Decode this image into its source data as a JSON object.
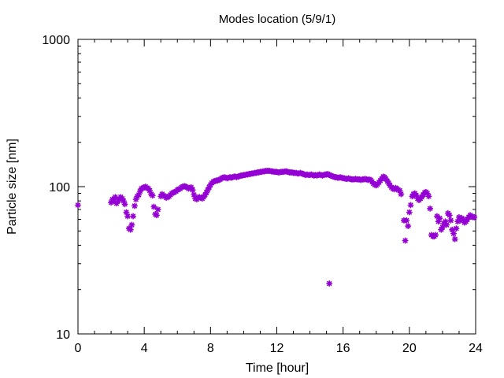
{
  "chart_data": {
    "type": "scatter",
    "title": "Modes location (5/9/1)",
    "xlabel": "Time [hour]",
    "ylabel": "Particle size [nm]",
    "xlim": [
      0,
      24
    ],
    "ylim": [
      10,
      1000
    ],
    "yscale": "log",
    "xticks": [
      0,
      4,
      8,
      12,
      16,
      20,
      24
    ],
    "xtick_labels": [
      "0",
      "4",
      "8",
      "12",
      "16",
      "20",
      "24"
    ],
    "yticks": [
      10,
      100,
      1000
    ],
    "ytick_labels": [
      "10",
      "100",
      "1000"
    ],
    "grid": false,
    "legend": "none",
    "marker": "asterisk",
    "color": "#9400d3",
    "series": [
      {
        "points": [
          [
            0.0,
            75
          ],
          [
            2.0,
            78
          ],
          [
            2.08,
            82
          ],
          [
            2.17,
            80
          ],
          [
            2.25,
            85
          ],
          [
            2.33,
            77
          ],
          [
            2.42,
            80
          ],
          [
            2.5,
            82
          ],
          [
            2.58,
            85
          ],
          [
            2.67,
            83
          ],
          [
            2.75,
            80
          ],
          [
            2.83,
            76
          ],
          [
            2.92,
            67
          ],
          [
            3.0,
            63
          ],
          [
            3.08,
            52
          ],
          [
            3.17,
            51
          ],
          [
            3.25,
            55
          ],
          [
            3.33,
            63
          ],
          [
            3.42,
            74
          ],
          [
            3.5,
            82
          ],
          [
            3.58,
            86
          ],
          [
            3.67,
            88
          ],
          [
            3.75,
            93
          ],
          [
            3.83,
            97
          ],
          [
            3.92,
            98
          ],
          [
            4.0,
            99
          ],
          [
            4.08,
            100
          ],
          [
            4.17,
            98
          ],
          [
            4.25,
            97
          ],
          [
            4.33,
            94
          ],
          [
            4.42,
            89
          ],
          [
            4.5,
            87
          ],
          [
            4.58,
            73
          ],
          [
            4.67,
            65
          ],
          [
            4.75,
            64
          ],
          [
            4.83,
            70
          ],
          [
            5.0,
            86
          ],
          [
            5.08,
            89
          ],
          [
            5.17,
            87
          ],
          [
            5.25,
            86
          ],
          [
            5.33,
            84
          ],
          [
            5.42,
            85
          ],
          [
            5.5,
            86
          ],
          [
            5.58,
            88
          ],
          [
            5.67,
            90
          ],
          [
            5.75,
            91
          ],
          [
            5.83,
            92
          ],
          [
            5.92,
            93
          ],
          [
            6.0,
            95
          ],
          [
            6.08,
            96
          ],
          [
            6.17,
            97
          ],
          [
            6.25,
            99
          ],
          [
            6.33,
            100
          ],
          [
            6.42,
            101
          ],
          [
            6.5,
            100
          ],
          [
            6.58,
            99
          ],
          [
            6.67,
            97
          ],
          [
            6.75,
            98
          ],
          [
            6.83,
            99
          ],
          [
            6.92,
            95
          ],
          [
            7.0,
            88
          ],
          [
            7.08,
            83
          ],
          [
            7.17,
            82
          ],
          [
            7.25,
            84
          ],
          [
            7.33,
            85
          ],
          [
            7.42,
            84
          ],
          [
            7.5,
            83
          ],
          [
            7.58,
            85
          ],
          [
            7.67,
            88
          ],
          [
            7.75,
            91
          ],
          [
            7.83,
            95
          ],
          [
            7.92,
            99
          ],
          [
            8.0,
            103
          ],
          [
            8.08,
            106
          ],
          [
            8.17,
            108
          ],
          [
            8.25,
            109
          ],
          [
            8.33,
            110
          ],
          [
            8.42,
            110
          ],
          [
            8.5,
            111
          ],
          [
            8.58,
            112
          ],
          [
            8.67,
            114
          ],
          [
            8.75,
            115
          ],
          [
            8.83,
            116
          ],
          [
            8.92,
            115
          ],
          [
            9.0,
            114
          ],
          [
            9.08,
            115
          ],
          [
            9.17,
            116
          ],
          [
            9.25,
            115
          ],
          [
            9.33,
            116
          ],
          [
            9.42,
            117
          ],
          [
            9.5,
            117
          ],
          [
            9.58,
            116
          ],
          [
            9.67,
            117
          ],
          [
            9.75,
            118
          ],
          [
            9.83,
            119
          ],
          [
            9.92,
            119
          ],
          [
            10.0,
            120
          ],
          [
            10.08,
            120
          ],
          [
            10.17,
            121
          ],
          [
            10.25,
            121
          ],
          [
            10.33,
            122
          ],
          [
            10.42,
            122
          ],
          [
            10.5,
            123
          ],
          [
            10.58,
            123
          ],
          [
            10.67,
            124
          ],
          [
            10.75,
            124
          ],
          [
            10.83,
            125
          ],
          [
            10.92,
            125
          ],
          [
            11.0,
            126
          ],
          [
            11.08,
            126
          ],
          [
            11.17,
            127
          ],
          [
            11.25,
            127
          ],
          [
            11.33,
            128
          ],
          [
            11.42,
            128
          ],
          [
            11.5,
            128
          ],
          [
            11.58,
            128
          ],
          [
            11.67,
            127
          ],
          [
            11.75,
            127
          ],
          [
            11.83,
            126
          ],
          [
            11.92,
            126
          ],
          [
            12.0,
            126
          ],
          [
            12.08,
            125
          ],
          [
            12.17,
            125
          ],
          [
            12.25,
            126
          ],
          [
            12.33,
            126
          ],
          [
            12.42,
            126
          ],
          [
            12.5,
            127
          ],
          [
            12.58,
            127
          ],
          [
            12.67,
            126
          ],
          [
            12.75,
            125
          ],
          [
            12.83,
            125
          ],
          [
            12.92,
            125
          ],
          [
            13.0,
            124
          ],
          [
            13.08,
            124
          ],
          [
            13.17,
            124
          ],
          [
            13.25,
            123
          ],
          [
            13.33,
            123
          ],
          [
            13.42,
            124
          ],
          [
            13.5,
            123
          ],
          [
            13.58,
            122
          ],
          [
            13.67,
            121
          ],
          [
            13.75,
            120
          ],
          [
            13.83,
            121
          ],
          [
            13.92,
            120
          ],
          [
            14.0,
            120
          ],
          [
            14.08,
            121
          ],
          [
            14.17,
            120
          ],
          [
            14.25,
            119
          ],
          [
            14.33,
            120
          ],
          [
            14.42,
            119
          ],
          [
            14.5,
            120
          ],
          [
            14.58,
            121
          ],
          [
            14.67,
            120
          ],
          [
            14.75,
            119
          ],
          [
            14.83,
            120
          ],
          [
            14.92,
            121
          ],
          [
            15.0,
            121
          ],
          [
            15.08,
            122
          ],
          [
            15.17,
            120
          ],
          [
            15.25,
            119
          ],
          [
            15.33,
            118
          ],
          [
            15.42,
            117
          ],
          [
            15.5,
            116
          ],
          [
            15.58,
            116
          ],
          [
            15.67,
            115
          ],
          [
            15.75,
            115
          ],
          [
            15.83,
            116
          ],
          [
            15.92,
            115
          ],
          [
            16.0,
            114
          ],
          [
            16.08,
            114
          ],
          [
            16.17,
            113
          ],
          [
            16.25,
            113
          ],
          [
            16.33,
            114
          ],
          [
            16.42,
            113
          ],
          [
            16.5,
            112
          ],
          [
            16.58,
            112
          ],
          [
            16.67,
            112
          ],
          [
            16.75,
            113
          ],
          [
            16.83,
            112
          ],
          [
            16.92,
            112
          ],
          [
            17.0,
            112
          ],
          [
            17.08,
            111
          ],
          [
            17.17,
            112
          ],
          [
            17.25,
            112
          ],
          [
            17.33,
            113
          ],
          [
            17.42,
            112
          ],
          [
            17.5,
            111
          ],
          [
            17.58,
            112
          ],
          [
            17.67,
            111
          ],
          [
            17.75,
            108
          ],
          [
            17.83,
            105
          ],
          [
            17.92,
            103
          ],
          [
            18.0,
            102
          ],
          [
            18.08,
            104
          ],
          [
            18.17,
            107
          ],
          [
            18.25,
            110
          ],
          [
            18.33,
            113
          ],
          [
            18.42,
            117
          ],
          [
            18.5,
            116
          ],
          [
            18.58,
            113
          ],
          [
            18.67,
            109
          ],
          [
            18.75,
            106
          ],
          [
            18.83,
            102
          ],
          [
            18.92,
            99
          ],
          [
            19.0,
            97
          ],
          [
            19.08,
            96
          ],
          [
            19.17,
            98
          ],
          [
            19.25,
            97
          ],
          [
            19.33,
            95
          ],
          [
            19.42,
            94
          ],
          [
            19.5,
            89
          ],
          [
            15.17,
            22
          ],
          [
            19.67,
            59
          ],
          [
            19.75,
            43
          ],
          [
            19.83,
            59
          ],
          [
            19.92,
            54
          ],
          [
            20.0,
            67
          ],
          [
            20.08,
            75
          ],
          [
            20.17,
            86
          ],
          [
            20.25,
            89
          ],
          [
            20.33,
            90
          ],
          [
            20.42,
            87
          ],
          [
            20.5,
            83
          ],
          [
            20.58,
            81
          ],
          [
            20.67,
            83
          ],
          [
            20.75,
            85
          ],
          [
            20.83,
            88
          ],
          [
            20.92,
            91
          ],
          [
            21.0,
            92
          ],
          [
            21.08,
            90
          ],
          [
            21.17,
            86
          ],
          [
            21.25,
            71
          ],
          [
            21.33,
            47
          ],
          [
            21.42,
            46
          ],
          [
            21.5,
            46
          ],
          [
            21.58,
            47
          ],
          [
            21.67,
            63
          ],
          [
            21.75,
            58
          ],
          [
            21.83,
            61
          ],
          [
            21.92,
            51
          ],
          [
            22.0,
            53
          ],
          [
            22.08,
            56
          ],
          [
            22.17,
            58
          ],
          [
            22.25,
            55
          ],
          [
            22.33,
            66
          ],
          [
            22.42,
            64
          ],
          [
            22.5,
            59
          ],
          [
            22.58,
            51
          ],
          [
            22.67,
            48
          ],
          [
            22.75,
            44
          ],
          [
            22.83,
            52
          ],
          [
            22.92,
            58
          ],
          [
            23.0,
            62
          ],
          [
            23.08,
            59
          ],
          [
            23.17,
            61
          ],
          [
            23.25,
            60
          ],
          [
            23.33,
            57
          ],
          [
            23.42,
            58
          ],
          [
            23.5,
            60
          ],
          [
            23.58,
            62
          ],
          [
            23.67,
            64
          ],
          [
            23.75,
            63
          ],
          [
            23.83,
            62
          ],
          [
            23.92,
            62
          ]
        ]
      }
    ]
  }
}
